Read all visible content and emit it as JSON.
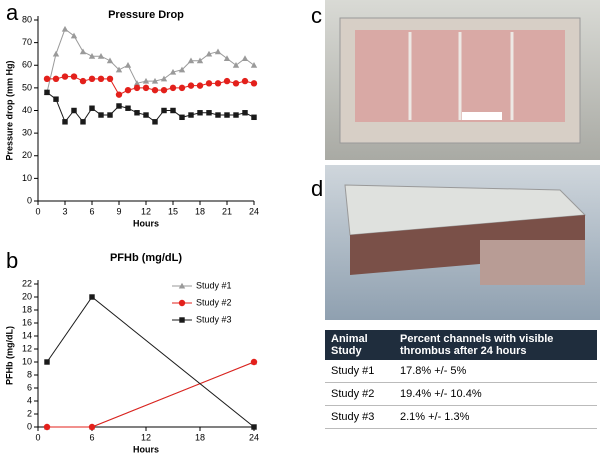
{
  "panels": {
    "a": "a",
    "b": "b",
    "c": "c",
    "d": "d"
  },
  "chart_data": [
    {
      "type": "line",
      "title": "Pressure Drop",
      "x_label": "Hours",
      "y_label": "Pressure drop (mm Hg)",
      "x": [
        1,
        2,
        3,
        4,
        5,
        6,
        7,
        8,
        9,
        10,
        11,
        12,
        13,
        14,
        15,
        16,
        17,
        18,
        19,
        20,
        21,
        22,
        23,
        24
      ],
      "xlim": [
        0,
        24
      ],
      "xticks": [
        0,
        3,
        6,
        9,
        12,
        15,
        18,
        21,
        24
      ],
      "ylim": [
        0,
        80
      ],
      "yticks": [
        0,
        10,
        20,
        30,
        40,
        50,
        60,
        70,
        80
      ],
      "series": [
        {
          "name": "Study #1",
          "color": "#9a9a9a",
          "marker": "triangle",
          "values": [
            48,
            65,
            76,
            73,
            66,
            64,
            64,
            62,
            58,
            60,
            52,
            53,
            53,
            54,
            57,
            58,
            62,
            62,
            65,
            66,
            63,
            60,
            63,
            60
          ]
        },
        {
          "name": "Study #2",
          "color": "#e3201b",
          "marker": "circle",
          "values": [
            54,
            54,
            55,
            55,
            53,
            54,
            54,
            54,
            47,
            49,
            50,
            50,
            49,
            49,
            50,
            50,
            51,
            51,
            52,
            52,
            53,
            52,
            53,
            52
          ]
        },
        {
          "name": "Study #3",
          "color": "#1a1a1a",
          "marker": "square",
          "values": [
            48,
            45,
            35,
            40,
            35,
            41,
            38,
            38,
            42,
            41,
            39,
            38,
            35,
            40,
            40,
            37,
            38,
            39,
            39,
            38,
            38,
            38,
            39,
            37
          ]
        }
      ]
    },
    {
      "type": "line",
      "title": "PFHb (mg/dL)",
      "x_label": "Hours",
      "y_label": "PFHb (mg/dL)",
      "x": [
        1,
        6,
        24
      ],
      "xlim": [
        0,
        24
      ],
      "xticks": [
        0,
        6,
        12,
        18,
        24
      ],
      "ylim": [
        0,
        22
      ],
      "yticks": [
        0,
        2,
        4,
        6,
        8,
        10,
        12,
        14,
        16,
        18,
        20,
        22
      ],
      "legend": "upper right",
      "series": [
        {
          "name": "Study #1",
          "color": "#9a9a9a",
          "marker": "triangle",
          "values": [
            0,
            0,
            10
          ]
        },
        {
          "name": "Study #2",
          "color": "#e3201b",
          "marker": "circle",
          "values": [
            0,
            0,
            10
          ]
        },
        {
          "name": "Study #3",
          "color": "#1a1a1a",
          "marker": "square",
          "values": [
            10,
            20,
            0
          ]
        }
      ]
    }
  ],
  "table": {
    "header": [
      "Animal Study",
      "Percent channels with visible thrombus after 24 hours"
    ],
    "rows": [
      [
        "Study #1",
        "17.8% +/- 5%"
      ],
      [
        "Study #2",
        "19.4% +/- 10.4%"
      ],
      [
        "Study #3",
        "2.1% +/- 1.3%"
      ]
    ]
  }
}
